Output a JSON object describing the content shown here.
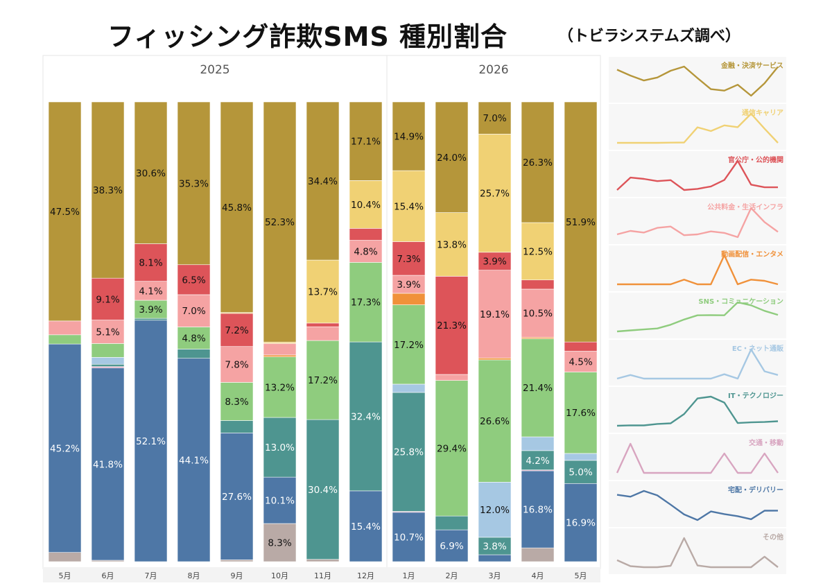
{
  "title": "フィッシング詐欺SMS 種別割合",
  "subtitle": "（トビラシステムズ調べ）",
  "chart_data": {
    "type": "bar",
    "stacked": "100%",
    "year_groups": [
      {
        "label": "2025",
        "months": [
          "5月",
          "6月",
          "7月",
          "8月",
          "9月",
          "10月",
          "11月",
          "12月"
        ]
      },
      {
        "label": "2026",
        "months": [
          "1月",
          "2月",
          "3月",
          "4月",
          "5月"
        ]
      }
    ],
    "categories": [
      "5月",
      "6月",
      "7月",
      "8月",
      "9月",
      "10月",
      "11月",
      "12月",
      "1月",
      "2月",
      "3月",
      "4月",
      "5月"
    ],
    "series": [
      {
        "name": "その他",
        "color": "#b9aaa6",
        "values": [
          2.0,
          0.3,
          0,
          0,
          0.4,
          8.3,
          0.5,
          0,
          0,
          0,
          0,
          3.0,
          0
        ]
      },
      {
        "name": "宅配・デリバリー",
        "color": "#4e77a6",
        "values": [
          45.2,
          41.8,
          52.1,
          44.1,
          27.6,
          10.1,
          0,
          15.4,
          10.7,
          6.9,
          1.5,
          16.8,
          16.9
        ]
      },
      {
        "name": "交通・移動",
        "color": "#d8a5c0",
        "values": [
          0,
          0.3,
          0,
          0,
          0,
          0,
          0,
          0,
          0.2,
          0,
          0,
          0.2,
          0
        ]
      },
      {
        "name": "IT・テクノロジー",
        "color": "#4e9590",
        "values": [
          0,
          0.5,
          0.4,
          2.0,
          2.7,
          13.0,
          30.4,
          32.4,
          25.8,
          3.0,
          3.8,
          4.2,
          5.0
        ]
      },
      {
        "name": "EC・ネット通販",
        "color": "#a6c8e3",
        "values": [
          0,
          1.5,
          0,
          0,
          0,
          0,
          0,
          0,
          1.8,
          0,
          12.0,
          3.0,
          1.5
        ]
      },
      {
        "name": "SNS・コミュニケーション",
        "color": "#8fcc7e",
        "values": [
          2.0,
          3.0,
          3.9,
          4.8,
          8.3,
          13.2,
          17.2,
          17.3,
          17.2,
          29.4,
          26.6,
          21.4,
          17.6
        ]
      },
      {
        "name": "動画配信・エンタメ",
        "color": "#f0913a",
        "values": [
          0,
          0,
          0,
          0,
          0,
          0.4,
          0,
          0,
          2.5,
          0,
          0.4,
          0.3,
          0
        ]
      },
      {
        "name": "公共料金・生活インフラ",
        "color": "#f5a3a3",
        "values": [
          3.0,
          5.1,
          4.1,
          7.0,
          7.8,
          2.5,
          3.0,
          4.8,
          3.9,
          1.3,
          19.1,
          10.5,
          4.5
        ]
      },
      {
        "name": "官公庁・公的機関",
        "color": "#dd5459",
        "values": [
          0,
          9.1,
          8.1,
          6.5,
          7.2,
          0,
          0.8,
          2.6,
          7.3,
          21.3,
          3.9,
          2.0,
          2.0
        ]
      },
      {
        "name": "通信キャリア",
        "color": "#f0d174",
        "values": [
          0,
          0,
          0,
          0,
          0.2,
          0.3,
          13.7,
          10.4,
          15.4,
          13.8,
          25.7,
          12.5,
          0
        ]
      },
      {
        "name": "金融・決済サービス",
        "color": "#b5963a",
        "values": [
          47.5,
          38.3,
          30.6,
          35.3,
          45.8,
          52.3,
          34.4,
          17.1,
          14.9,
          24.0,
          7.0,
          26.3,
          51.9
        ]
      }
    ],
    "labels_shown": {
      "その他": [
        null,
        null,
        null,
        null,
        null,
        "8.3%",
        null,
        null,
        null,
        null,
        null,
        null,
        null
      ],
      "宅配・デリバリー": [
        "45.2%",
        "41.8%",
        "52.1%",
        "44.1%",
        "27.6%",
        "10.1%",
        null,
        "15.4%",
        "10.7%",
        "6.9%",
        null,
        "16.8%",
        "16.9%"
      ],
      "IT・テクノロジー": [
        null,
        null,
        null,
        null,
        null,
        "13.0%",
        "30.4%",
        "32.4%",
        "25.8%",
        null,
        "3.8%",
        "4.2%",
        "5.0%"
      ],
      "EC・ネット通販": [
        null,
        null,
        null,
        null,
        null,
        null,
        null,
        null,
        null,
        null,
        "12.0%",
        null,
        null
      ],
      "SNS・コミュニケーション": [
        null,
        null,
        "3.9%",
        "4.8%",
        "8.3%",
        "13.2%",
        "17.2%",
        "17.3%",
        "17.2%",
        "29.4%",
        "26.6%",
        "21.4%",
        "17.6%"
      ],
      "公共料金・生活インフラ": [
        null,
        "5.1%",
        "4.1%",
        "7.0%",
        "7.8%",
        null,
        null,
        "4.8%",
        "3.9%",
        null,
        "19.1%",
        "10.5%",
        "4.5%"
      ],
      "官公庁・公的機関": [
        null,
        "9.1%",
        "8.1%",
        "6.5%",
        "7.2%",
        null,
        null,
        null,
        "7.3%",
        "21.3%",
        "3.9%",
        null,
        null
      ],
      "通信キャリア": [
        null,
        null,
        null,
        null,
        null,
        null,
        "13.7%",
        "10.4%",
        "15.4%",
        "13.8%",
        "25.7%",
        "12.5%",
        null
      ],
      "金融・決済サービス": [
        "47.5%",
        "38.3%",
        "30.6%",
        "35.3%",
        "45.8%",
        "52.3%",
        "34.4%",
        "17.1%",
        "14.9%",
        "24.0%",
        "7.0%",
        "26.3%",
        "51.9%"
      ]
    },
    "sparklines_order": [
      "金融・決済サービス",
      "通信キャリア",
      "官公庁・公的機関",
      "公共料金・生活インフラ",
      "動画配信・エンタメ",
      "SNS・コミュニケーション",
      "EC・ネット通販",
      "IT・テクノロジー",
      "交通・移動",
      "宅配・デリバリー",
      "その他"
    ],
    "grid": false,
    "ylim": [
      0,
      100
    ]
  }
}
